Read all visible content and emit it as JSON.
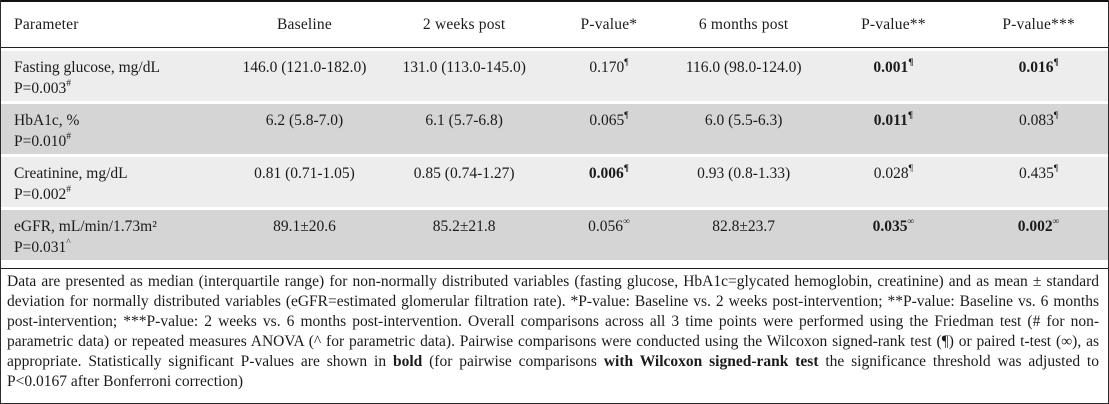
{
  "table": {
    "headers": [
      "Parameter",
      "Baseline",
      "2 weeks post",
      "P-value*",
      "6 months post",
      "P-value**",
      "P-value***"
    ],
    "rows": [
      {
        "parameter": "Fasting glucose, mg/dL",
        "overall_p": "P=0.003",
        "overall_p_sup": "#",
        "baseline": "146.0 (121.0-182.0)",
        "two_weeks_post": "131.0 (113.0-145.0)",
        "six_months_post": "116.0 (98.0-124.0)",
        "p_values": [
          {
            "value": "0.170",
            "sup": "¶",
            "bold": false
          },
          {
            "value": "0.001",
            "sup": "¶",
            "bold": true
          },
          {
            "value": "0.016",
            "sup": "¶",
            "bold": true
          }
        ]
      },
      {
        "parameter": "HbA1c, %",
        "overall_p": "P=0.010",
        "overall_p_sup": "#",
        "baseline": "6.2 (5.8-7.0)",
        "two_weeks_post": "6.1 (5.7-6.8)",
        "six_months_post": "6.0 (5.5-6.3)",
        "p_values": [
          {
            "value": "0.065",
            "sup": "¶",
            "bold": false
          },
          {
            "value": "0.011",
            "sup": "¶",
            "bold": true
          },
          {
            "value": "0.083",
            "sup": "¶",
            "bold": false
          }
        ]
      },
      {
        "parameter": "Creatinine, mg/dL",
        "overall_p": "P=0.002",
        "overall_p_sup": "#",
        "baseline": "0.81 (0.71-1.05)",
        "two_weeks_post": "0.85 (0.74-1.27)",
        "six_months_post": "0.93 (0.8-1.33)",
        "p_values": [
          {
            "value": "0.006",
            "sup": "¶",
            "bold": true
          },
          {
            "value": "0.028",
            "sup": "¶",
            "bold": false
          },
          {
            "value": "0.435",
            "sup": "¶",
            "bold": false
          }
        ]
      },
      {
        "parameter": "eGFR, mL/min/1.73m²",
        "overall_p": "P=0.031",
        "overall_p_sup": "^",
        "baseline": "89.1±20.6",
        "two_weeks_post": "85.2±21.8",
        "six_months_post": "82.8±23.7",
        "p_values": [
          {
            "value": "0.056",
            "sup": "∞",
            "bold": false
          },
          {
            "value": "0.035",
            "sup": "∞",
            "bold": true
          },
          {
            "value": "0.002",
            "sup": "∞",
            "bold": true
          }
        ]
      }
    ]
  },
  "footnote": {
    "segments": [
      {
        "text": "Data are presented as median (interquartile range) for non-normally distributed variables (fasting glucose, HbA1c=glycated hemoglobin, creatinine) and as mean ± standard deviation for normally distributed variables (eGFR=estimated glomerular filtration rate). *P-value: Baseline vs. 2 weeks post-intervention; **P-value: Baseline vs. 6 months post-intervention; ***P-value: 2 weeks vs. 6 months post-intervention. Overall comparisons across all 3 time points were performed using the Friedman test (# for non-parametric data) or repeated measures ANOVA (^ for parametric data). Pairwise comparisons were conducted using the Wilcoxon signed-rank test (¶) or paired t-test (∞), as appropriate. Statistically significant P-values are shown in ",
        "bold": false
      },
      {
        "text": "bold",
        "bold": true
      },
      {
        "text": " (for pairwise comparisons ",
        "bold": false
      },
      {
        "text": "with Wilcoxon signed-rank test",
        "bold": true
      },
      {
        "text": " the significance threshold was adjusted to P<0.0167 after Bonferroni correction)",
        "bold": false
      }
    ]
  },
  "colors": {
    "row_light": "#ededed",
    "row_dark": "#d5d5d5",
    "rule": "#1a1a1a",
    "text": "#1b1b1b"
  }
}
